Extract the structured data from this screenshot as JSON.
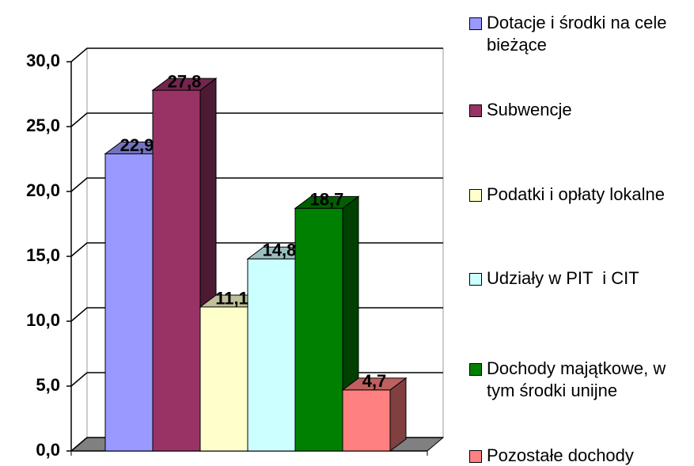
{
  "chart_data": {
    "type": "bar",
    "ylim": [
      0,
      30
    ],
    "yticks": [
      {
        "value": 0,
        "label": "0,0"
      },
      {
        "value": 5,
        "label": "5,0"
      },
      {
        "value": 10,
        "label": "10,0"
      },
      {
        "value": 15,
        "label": "15,0"
      },
      {
        "value": 20,
        "label": "20,0"
      },
      {
        "value": 25,
        "label": "25,0"
      },
      {
        "value": 30,
        "label": "30,0"
      }
    ],
    "grid": true,
    "legend": "right",
    "series": [
      {
        "name": "Dotacje i środki na cele bieżące",
        "color": "#9999ff",
        "values": [
          22.9
        ],
        "value_labels": [
          "22,9"
        ]
      },
      {
        "name": "Subwencje",
        "color": "#993366",
        "values": [
          27.8
        ],
        "value_labels": [
          "27,8"
        ]
      },
      {
        "name": "Podatki i opłaty lokalne",
        "color": "#ffffcc",
        "values": [
          11.1
        ],
        "value_labels": [
          "11,1"
        ]
      },
      {
        "name": "Udziały w PIT  i CIT",
        "color": "#ccffff",
        "values": [
          14.8
        ],
        "value_labels": [
          "14,8"
        ]
      },
      {
        "name": "Dochody majątkowe, w tym środki unijne",
        "color": "#008000",
        "values": [
          18.7
        ],
        "value_labels": [
          "18,7"
        ]
      },
      {
        "name": "Pozostałe dochody",
        "color": "#ff8080",
        "values": [
          4.7
        ],
        "value_labels": [
          "4,7"
        ]
      }
    ]
  }
}
